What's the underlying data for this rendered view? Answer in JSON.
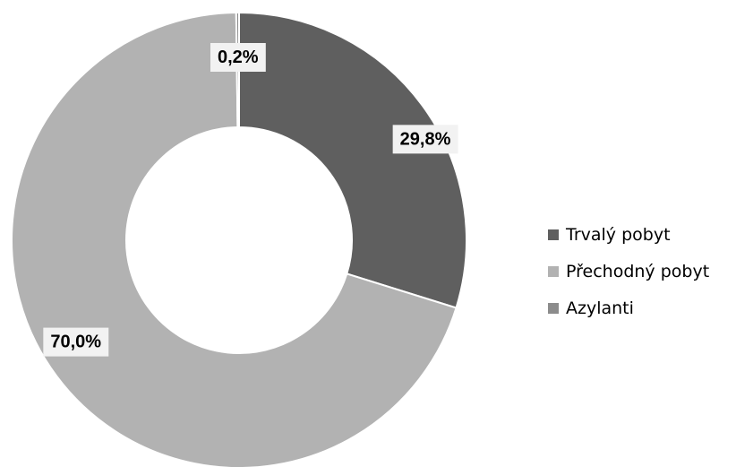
{
  "chart_data": {
    "type": "pie",
    "donut": true,
    "title": "",
    "start_angle_deg": 0,
    "direction": "clockwise",
    "slices": [
      {
        "name": "Trvalý pobyt",
        "value": 29.8,
        "label": "29,8%",
        "color": "#5f5f5f"
      },
      {
        "name": "Přechodný pobyt",
        "value": 70.0,
        "label": "70,0%",
        "color": "#b2b2b2"
      },
      {
        "name": "Azylanti",
        "value": 0.2,
        "label": "0,2%",
        "color": "#8c8c8c"
      }
    ],
    "legend": {
      "position": "right",
      "entries": [
        "Trvalý pobyt",
        "Přechodný pobyt",
        "Azylanti"
      ]
    },
    "label_box_color": "#f2f2f2"
  }
}
